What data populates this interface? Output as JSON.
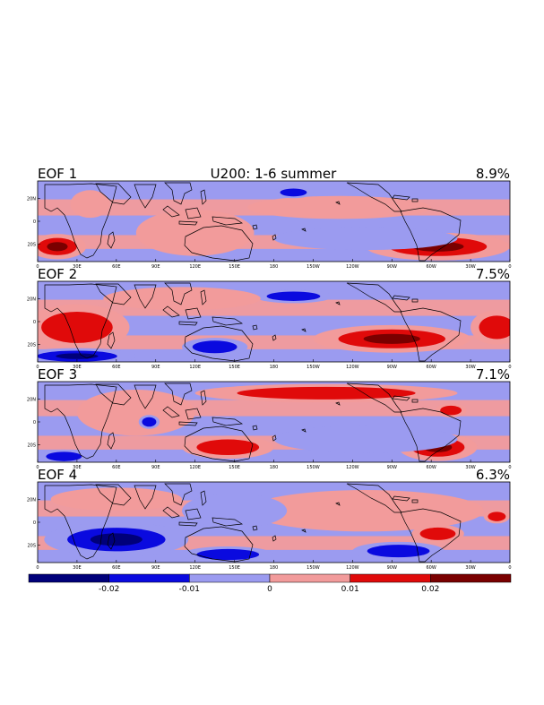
{
  "figure": {
    "title": "U200: 1-6 summer",
    "colors": {
      "c1": "#00007a",
      "c2": "#0a0adf",
      "c3": "#9b9bf0",
      "c4": "#f29b9b",
      "c5": "#e00a0a",
      "c6": "#7a0000",
      "background": "#ffffff"
    }
  },
  "panels": [
    {
      "label": "EOF 1",
      "variance": "8.9%"
    },
    {
      "label": "EOF 2",
      "variance": "7.5%"
    },
    {
      "label": "EOF 3",
      "variance": "7.1%"
    },
    {
      "label": "EOF 4",
      "variance": "6.3%"
    }
  ],
  "axes": {
    "lon_ticks": [
      "0",
      "30E",
      "60E",
      "90E",
      "120E",
      "150E",
      "180",
      "150W",
      "120W",
      "90W",
      "60W",
      "30W",
      "0"
    ],
    "lat_ticks": [
      "20N",
      "0",
      "20S"
    ]
  },
  "colorbar": {
    "ticks": [
      "-0.02",
      "-0.01",
      "0",
      "0.01",
      "0.02"
    ],
    "levels": [
      -0.03,
      -0.02,
      -0.01,
      0,
      0.01,
      0.02,
      0.03
    ]
  },
  "map_data": {
    "type": "contour_map",
    "lon_range": [
      0,
      360
    ],
    "lat_range": [
      -35,
      35
    ],
    "anomalies": [
      [
        {
          "lon": 15,
          "lat": -22,
          "rx": 22,
          "ry": 11,
          "sign": 1,
          "peak": 3
        },
        {
          "lon": 305,
          "lat": -22,
          "rx": 55,
          "ry": 12,
          "sign": 1,
          "peak": 3
        },
        {
          "lon": 40,
          "lat": 15,
          "rx": 15,
          "ry": 12,
          "sign": 1,
          "peak": 1
        },
        {
          "lon": 120,
          "lat": -10,
          "rx": 45,
          "ry": 20,
          "sign": 1,
          "peak": 1
        },
        {
          "lon": 230,
          "lat": 12,
          "rx": 70,
          "ry": 10,
          "sign": 1,
          "peak": 1
        },
        {
          "lon": 195,
          "lat": 25,
          "rx": 15,
          "ry": 5,
          "sign": -1,
          "peak": 2
        },
        {
          "lon": 250,
          "lat": -15,
          "rx": 70,
          "ry": 10,
          "sign": -1,
          "peak": 1
        }
      ],
      [
        {
          "lon": 30,
          "lat": -5,
          "rx": 40,
          "ry": 20,
          "sign": 1,
          "peak": 2
        },
        {
          "lon": 30,
          "lat": -30,
          "rx": 45,
          "ry": 7,
          "sign": -1,
          "peak": 3
        },
        {
          "lon": 135,
          "lat": -22,
          "rx": 25,
          "ry": 8,
          "sign": -1,
          "peak": 2
        },
        {
          "lon": 195,
          "lat": 22,
          "rx": 30,
          "ry": 6,
          "sign": -1,
          "peak": 2
        },
        {
          "lon": 270,
          "lat": -15,
          "rx": 60,
          "ry": 12,
          "sign": 1,
          "peak": 3
        },
        {
          "lon": 350,
          "lat": -5,
          "rx": 20,
          "ry": 15,
          "sign": 1,
          "peak": 2
        },
        {
          "lon": 110,
          "lat": 20,
          "rx": 60,
          "ry": 10,
          "sign": 1,
          "peak": 1
        }
      ],
      [
        {
          "lon": 220,
          "lat": 25,
          "rx": 100,
          "ry": 8,
          "sign": 1,
          "peak": 2
        },
        {
          "lon": 145,
          "lat": -22,
          "rx": 35,
          "ry": 10,
          "sign": 1,
          "peak": 2
        },
        {
          "lon": 305,
          "lat": -22,
          "rx": 30,
          "ry": 12,
          "sign": 1,
          "peak": 3
        },
        {
          "lon": 315,
          "lat": 10,
          "rx": 12,
          "ry": 6,
          "sign": 1,
          "peak": 2
        },
        {
          "lon": 75,
          "lat": 8,
          "rx": 45,
          "ry": 20,
          "sign": 1,
          "peak": 1
        },
        {
          "lon": 250,
          "lat": -15,
          "rx": 70,
          "ry": 12,
          "sign": -1,
          "peak": 1
        },
        {
          "lon": 20,
          "lat": -30,
          "rx": 20,
          "ry": 6,
          "sign": -1,
          "peak": 2
        },
        {
          "lon": 85,
          "lat": 0,
          "rx": 8,
          "ry": 6,
          "sign": -1,
          "peak": 2
        }
      ],
      [
        {
          "lon": 60,
          "lat": -15,
          "rx": 55,
          "ry": 15,
          "sign": -1,
          "peak": 3
        },
        {
          "lon": 145,
          "lat": -28,
          "rx": 35,
          "ry": 7,
          "sign": -1,
          "peak": 2
        },
        {
          "lon": 275,
          "lat": -25,
          "rx": 35,
          "ry": 8,
          "sign": -1,
          "peak": 2
        },
        {
          "lon": 305,
          "lat": -10,
          "rx": 20,
          "ry": 8,
          "sign": 1,
          "peak": 2
        },
        {
          "lon": 350,
          "lat": 5,
          "rx": 10,
          "ry": 6,
          "sign": 1,
          "peak": 2
        },
        {
          "lon": 250,
          "lat": 10,
          "rx": 90,
          "ry": 18,
          "sign": 1,
          "peak": 1
        },
        {
          "lon": 60,
          "lat": 20,
          "rx": 50,
          "ry": 10,
          "sign": 1,
          "peak": 1
        },
        {
          "lon": 150,
          "lat": 10,
          "rx": 40,
          "ry": 15,
          "sign": -1,
          "peak": 1
        }
      ]
    ]
  }
}
